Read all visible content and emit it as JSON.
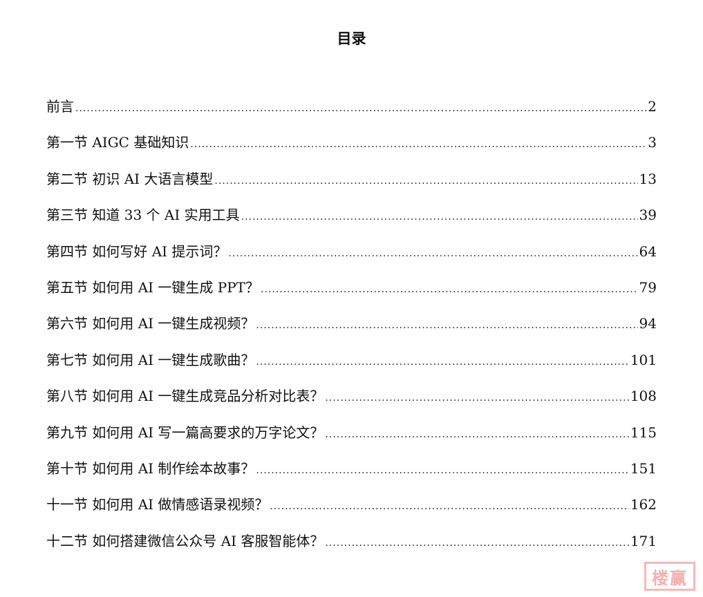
{
  "title": "目录",
  "entries": [
    {
      "label": "前言",
      "page": "2"
    },
    {
      "label": "第一节 AIGC 基础知识",
      "page": "3"
    },
    {
      "label": "第二节  初识 AI 大语言模型",
      "page": "13"
    },
    {
      "label": "第三节  知道 33 个 AI 实用工具",
      "page": "39"
    },
    {
      "label": "第四节  如何写好 AI 提示词？",
      "page": "64"
    },
    {
      "label": "第五节  如何用 AI 一键生成 PPT？",
      "page": "79"
    },
    {
      "label": "第六节  如何用 AI 一键生成视频？",
      "page": "94"
    },
    {
      "label": "第七节  如何用 AI 一键生成歌曲？",
      "page": "101"
    },
    {
      "label": "第八节  如何用 AI 一键生成竞品分析对比表？",
      "page": "108"
    },
    {
      "label": "第九节  如何用 AI 写一篇高要求的万字论文？",
      "page": "115"
    },
    {
      "label": "第十节  如何用 AI 制作绘本故事？",
      "page": "151"
    },
    {
      "label": "十一节  如何用 AI 做情感语录视频？",
      "page": "162"
    },
    {
      "label": "十二节  如何搭建微信公众号 AI 客服智能体？",
      "page": "171"
    }
  ],
  "watermark": {
    "text": "楼赢",
    "color": "#f4b0b0"
  }
}
